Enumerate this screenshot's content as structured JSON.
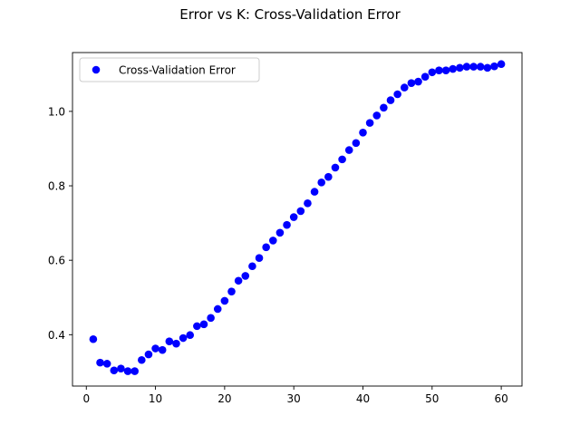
{
  "chart_data": {
    "type": "scatter",
    "title": "Error vs K: Cross-Validation Error",
    "xlabel": "",
    "ylabel": "",
    "xlim": [
      -2,
      63
    ],
    "ylim": [
      0.262,
      1.158
    ],
    "xticks": [
      0,
      10,
      20,
      30,
      40,
      50,
      60
    ],
    "yticks": [
      0.4,
      0.6,
      0.8,
      1.0
    ],
    "xtick_labels": [
      "0",
      "10",
      "20",
      "30",
      "40",
      "50",
      "60"
    ],
    "ytick_labels": [
      "0.4",
      "0.6",
      "0.8",
      "1.0"
    ],
    "grid": false,
    "legend": {
      "placement": "upper-left",
      "entries": [
        "Cross-Validation Error"
      ]
    },
    "series": [
      {
        "name": "Cross-Validation Error",
        "color": "#0000ff",
        "marker": "circle",
        "x": [
          1,
          2,
          3,
          4,
          5,
          6,
          7,
          8,
          9,
          10,
          11,
          12,
          13,
          14,
          15,
          16,
          17,
          18,
          19,
          20,
          21,
          22,
          23,
          24,
          25,
          26,
          27,
          28,
          29,
          30,
          31,
          32,
          33,
          34,
          35,
          36,
          37,
          38,
          39,
          40,
          41,
          42,
          43,
          44,
          45,
          46,
          47,
          48,
          49,
          50,
          51,
          52,
          53,
          54,
          55,
          56,
          57,
          58,
          59,
          60
        ],
        "y": [
          0.388,
          0.325,
          0.322,
          0.304,
          0.309,
          0.302,
          0.302,
          0.332,
          0.347,
          0.363,
          0.359,
          0.382,
          0.376,
          0.391,
          0.399,
          0.423,
          0.428,
          0.445,
          0.469,
          0.491,
          0.516,
          0.545,
          0.558,
          0.584,
          0.606,
          0.635,
          0.653,
          0.674,
          0.695,
          0.716,
          0.732,
          0.753,
          0.784,
          0.809,
          0.824,
          0.849,
          0.871,
          0.896,
          0.915,
          0.943,
          0.969,
          0.989,
          1.01,
          1.03,
          1.046,
          1.064,
          1.076,
          1.08,
          1.093,
          1.105,
          1.11,
          1.11,
          1.114,
          1.117,
          1.12,
          1.12,
          1.12,
          1.117,
          1.121,
          1.127
        ]
      }
    ]
  }
}
